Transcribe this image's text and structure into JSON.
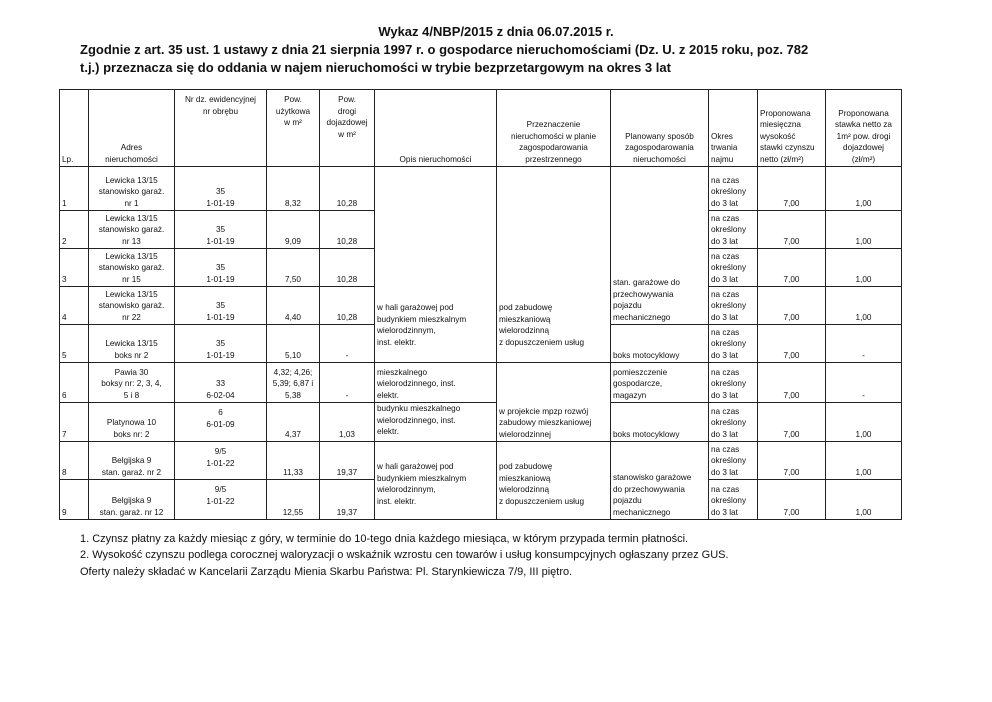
{
  "title": {
    "line1": "Wykaz 4/NBP/2015 z dnia 06.07.2015 r.",
    "line2": "Zgodnie z art. 35 ust. 1 ustawy z dnia 21 sierpnia 1997 r. o gospodarce nieruchomościami (Dz. U. z 2015 roku, poz. 782",
    "line3": "t.j.) przeznacza się do oddania w najem nieruchomości w trybie bezprzetargowym na okres 3 lat"
  },
  "table": {
    "headers": [
      "Lp.",
      "Adres\nnieruchomości",
      "Nr dz. ewidencyjnej\nnr obrębu",
      "Pow.\nużytkowa\nw m²",
      "Pow.\ndrogi\ndojazdowej\nw m²",
      "Opis nieruchomości",
      "Przeznaczenie\nnieruchomości w planie\nzagospodarowania\nprzestrzennego",
      "Planowany sposób\nzagospodarowania\nnieruchomości",
      "Okres\ntrwania\nnajmu",
      "Proponowana\nmiesięczna\nwysokość\nstawki czynszu\nnetto (zł/m²)",
      "Proponowana\nstawka netto za\n1m² pow. drogi\ndojazdowej\n(zł/m²)"
    ],
    "rows": [
      {
        "lp": "1",
        "adres": "Lewicka 13/15\nstanowisko garaż.\nnr 1",
        "dzialka": "35\n1-01-19",
        "pow_uz": "8,32",
        "pow_drogi": "10,28",
        "okres": "na czas\nokreślony\ndo 3 lat",
        "stawka": "7,00",
        "stawka_drogi": "1,00"
      },
      {
        "lp": "2",
        "adres": "Lewicka 13/15\nstanowisko garaż.\nnr 13",
        "dzialka": "35\n1-01-19",
        "pow_uz": "9,09",
        "pow_drogi": "10,28",
        "okres": "na czas\nokreślony\ndo 3 lat",
        "stawka": "7,00",
        "stawka_drogi": "1,00"
      },
      {
        "lp": "3",
        "adres": "Lewicka 13/15\nstanowisko garaż.\nnr 15",
        "dzialka": "35\n1-01-19",
        "pow_uz": "7,50",
        "pow_drogi": "10,28",
        "okres": "na czas\nokreślony\ndo 3 lat",
        "stawka": "7,00",
        "stawka_drogi": "1,00"
      },
      {
        "lp": "4",
        "adres": "Lewicka 13/15\nstanowisko garaż.\nnr 22",
        "dzialka": "35\n1-01-19",
        "pow_uz": "4,40",
        "pow_drogi": "10,28",
        "okres": "na czas\nokreślony\ndo 3 lat",
        "stawka": "7,00",
        "stawka_drogi": "1,00"
      },
      {
        "lp": "5",
        "adres": "Lewicka 13/15\nboks nr 2",
        "dzialka": "35\n1-01-19",
        "pow_uz": "5,10",
        "pow_drogi": "-",
        "okres": "na czas\nokreślony\ndo 3 lat",
        "stawka": "7,00",
        "stawka_drogi": "-"
      },
      {
        "lp": "6",
        "adres": "Pawia 30\nboksy nr: 2,  3,  4,\n5 i 8",
        "dzialka": "33\n6-02-04",
        "pow_uz": "4,32; 4,26;\n5,39; 6,87 i\n5,38",
        "pow_drogi": "-",
        "okres": "na czas\nokreślony\ndo 3 lat",
        "stawka": "7,00",
        "stawka_drogi": "-"
      },
      {
        "lp": "7",
        "adres": "Platynowa 10\nboks nr:  2",
        "dzialka": "6\n6-01-09",
        "pow_uz": "4,37",
        "pow_drogi": "1,03",
        "okres": "na czas\nokreślony\ndo 3 lat",
        "stawka": "7,00",
        "stawka_drogi": "1,00"
      },
      {
        "lp": "8",
        "adres": "Belgijska 9\nstan. garaż. nr 2",
        "dzialka": "9/5\n1-01-22",
        "pow_uz": "11,33",
        "pow_drogi": "19,37",
        "okres": "na czas\nokreślony\ndo 3 lat",
        "stawka": "7,00",
        "stawka_drogi": "1,00"
      },
      {
        "lp": "9",
        "adres": "Belgijska 9\nstan. garaż. nr 12",
        "dzialka": "9/5\n1-01-22",
        "pow_uz": "12,55",
        "pow_drogi": "19,37",
        "okres": "na czas\nokreślony\ndo 3 lat",
        "stawka": "7,00",
        "stawka_drogi": "1,00"
      }
    ],
    "opis": [
      "w hali garażowej pod\nbudynkiem mieszkalnym\nwielorodzinnym,\n inst. elektr.",
      "mieszkalnego\nwielorodzinnego, inst.\nelektr.",
      "budynku mieszkalnego\nwielorodzinnego, inst.\nelektr.",
      "w hali garażowej pod\nbudynkiem mieszkalnym\nwielorodzinnym,\n inst. elektr."
    ],
    "przeznaczenie": [
      "pod zabudowę\nmieszkaniową\nwielorodzinną\nz dopuszczeniem usług",
      "w projekcie mpzp rozwój\nzabudowy mieszkaniowej\nwielorodzinnej",
      "pod zabudowę\nmieszkaniową\nwielorodzinną\nz dopuszczeniem usług"
    ],
    "planowany": [
      "stan. garażowe do\nprzechowywania\npojazdu\nmechanicznego",
      "boks motocyklowy",
      "pomieszczenie\ngospodarcze,\nmagazyn",
      "boks motocyklowy",
      "stanowisko garażowe\ndo przechowywania\npojazdu\nmechanicznego"
    ]
  },
  "footnotes": [
    "1. Czynsz płatny za każdy miesiąc z góry, w terminie do 10-tego dnia każdego miesiąca, w którym przypada termin płatności.",
    "2. Wysokość czynszu podlega corocznej waloryzacji o wskaźnik wzrostu cen towarów i usług konsumpcyjnych ogłaszany przez GUS.",
    "Oferty należy składać w Kancelarii Zarządu Mienia Skarbu Państwa:  Pl. Starynkiewicza 7/9, III piętro."
  ]
}
